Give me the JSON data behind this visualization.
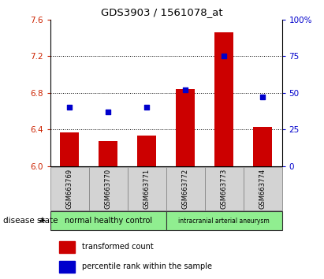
{
  "title": "GDS3903 / 1561078_at",
  "samples": [
    "GSM663769",
    "GSM663770",
    "GSM663771",
    "GSM663772",
    "GSM663773",
    "GSM663774"
  ],
  "transformed_count": [
    6.37,
    6.27,
    6.33,
    6.84,
    7.46,
    6.43
  ],
  "percentile_rank": [
    40,
    37,
    40,
    52,
    75,
    47
  ],
  "ylim_left": [
    6.0,
    7.6
  ],
  "ylim_right": [
    0,
    100
  ],
  "yticks_left": [
    6.0,
    6.4,
    6.8,
    7.2,
    7.6
  ],
  "yticks_right": [
    0,
    25,
    50,
    75,
    100
  ],
  "bar_color": "#cc0000",
  "dot_color": "#0000cc",
  "bar_width": 0.5,
  "group_labels": [
    "normal healthy control",
    "intracranial arterial aneurysm"
  ],
  "group_ranges": [
    [
      0,
      2
    ],
    [
      3,
      5
    ]
  ],
  "group_colors": [
    "#90ee90",
    "#90ee90"
  ],
  "group_label_prefix": "disease state",
  "legend_bar_label": "transformed count",
  "legend_dot_label": "percentile rank within the sample",
  "tick_label_color_left": "#cc2200",
  "tick_label_color_right": "#0000cc",
  "sample_box_color": "#d3d3d3"
}
